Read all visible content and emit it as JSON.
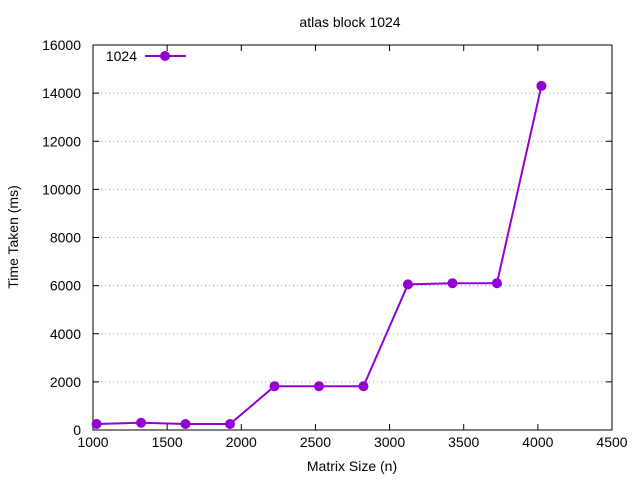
{
  "chart_data": {
    "type": "line",
    "title": "atlas block 1024",
    "xlabel": "Matrix Size (n)",
    "ylabel": "Time Taken (ms)",
    "xlim": [
      1000,
      4500
    ],
    "ylim": [
      0,
      16000
    ],
    "xticks": [
      1000,
      1500,
      2000,
      2500,
      3000,
      3500,
      4000,
      4500
    ],
    "yticks": [
      0,
      2000,
      4000,
      6000,
      8000,
      10000,
      12000,
      14000,
      16000
    ],
    "grid": "horizontal dotted",
    "legend_position": "top-left",
    "series": [
      {
        "name": "1024",
        "color": "#9400d3",
        "marker": "circle",
        "x": [
          1024,
          1324,
          1624,
          1924,
          2224,
          2524,
          2824,
          3124,
          3424,
          3724,
          4024
        ],
        "y": [
          250,
          300,
          250,
          250,
          1820,
          1820,
          1820,
          6050,
          6100,
          6100,
          14300
        ]
      }
    ]
  }
}
